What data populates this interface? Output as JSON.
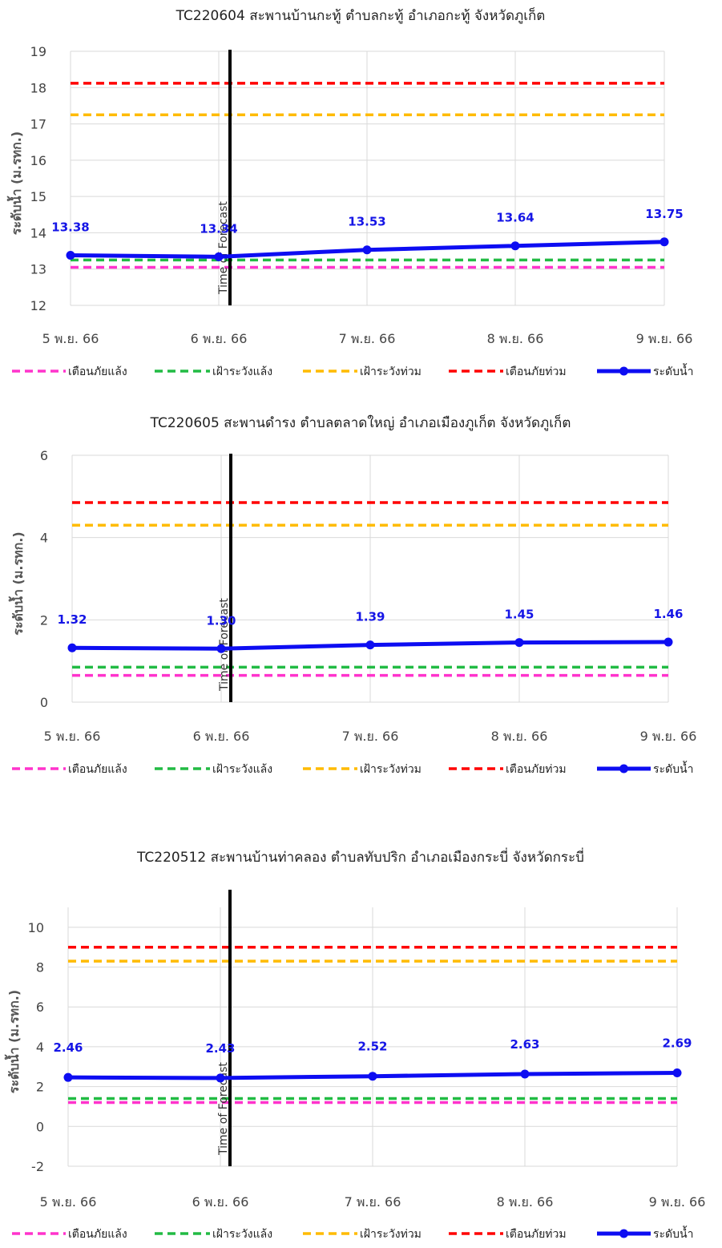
{
  "palette": {
    "drought_warning": "#ff33cc",
    "drought_watch": "#22bb44",
    "flood_watch": "#ffbb00",
    "flood_warning": "#ff0000",
    "water_level": "#0d0df2",
    "grid": "#d9d9d9",
    "time_of_forecast_line": "#000000"
  },
  "chart_data": [
    {
      "type": "line",
      "title": "TC220604 สะพานบ้านกะทู้ ตำบลกะทู้ อำเภอกะทู้  จังหวัดภูเก็ต",
      "ylabel": "ระดับน้ำ (ม.รทก.)",
      "categories": [
        "5 พ.ย. 66",
        "6 พ.ย. 66",
        "7 พ.ย. 66",
        "8 พ.ย. 66",
        "9 พ.ย. 66"
      ],
      "ylim": [
        12,
        19
      ],
      "yticks": [
        12,
        13,
        14,
        15,
        16,
        17,
        18,
        19
      ],
      "forecast_marker": {
        "label": "Time of Forecast",
        "x_index": 1.05
      },
      "thresholds": [
        {
          "name": "เตือนภัยแล้ง",
          "value": 13.05,
          "color": "#ff33cc"
        },
        {
          "name": "เฝ้าระวังแล้ง",
          "value": 13.25,
          "color": "#22bb44"
        },
        {
          "name": "เฝ้าระวังท่วม",
          "value": 17.25,
          "color": "#ffbb00"
        },
        {
          "name": "เตือนภัยท่วม",
          "value": 18.12,
          "color": "#ff0000"
        }
      ],
      "series": [
        {
          "name": "ระดับน้ำ",
          "values": [
            13.38,
            13.34,
            13.53,
            13.64,
            13.75
          ],
          "labels": [
            "13.38",
            "13.34",
            "13.53",
            "13.64",
            "13.75"
          ]
        }
      ],
      "legend": [
        "เตือนภัยแล้ง",
        "เฝ้าระวังแล้ง",
        "เฝ้าระวังท่วม",
        "เตือนภัยท่วม",
        "ระดับน้ำ"
      ],
      "legend_position": "bottom",
      "grid": true
    },
    {
      "type": "line",
      "title": "TC220605 สะพานดำรง ตำบลตลาดใหญ่ อำเภอเมืองภูเก็ต จังหวัดภูเก็ต",
      "ylabel": "ระดับน้ำ (ม.รทก.)",
      "categories": [
        "5 พ.ย. 66",
        "6 พ.ย. 66",
        "7 พ.ย. 66",
        "8 พ.ย. 66",
        "9 พ.ย. 66"
      ],
      "ylim": [
        0,
        6
      ],
      "yticks": [
        0,
        2,
        4,
        6
      ],
      "forecast_marker": {
        "label": "Time of Forecast",
        "x_index": 1.05
      },
      "thresholds": [
        {
          "name": "เตือนภัยแล้ง",
          "value": 0.65,
          "color": "#ff33cc"
        },
        {
          "name": "เฝ้าระวังแล้ง",
          "value": 0.85,
          "color": "#22bb44"
        },
        {
          "name": "เฝ้าระวังท่วม",
          "value": 4.3,
          "color": "#ffbb00"
        },
        {
          "name": "เตือนภัยท่วม",
          "value": 4.85,
          "color": "#ff0000"
        }
      ],
      "series": [
        {
          "name": "ระดับน้ำ",
          "values": [
            1.32,
            1.3,
            1.39,
            1.45,
            1.46
          ],
          "labels": [
            "1.32",
            "1.30",
            "1.39",
            "1.45",
            "1.46"
          ]
        }
      ],
      "legend": [
        "เตือนภัยแล้ง",
        "เฝ้าระวังแล้ง",
        "เฝ้าระวังท่วม",
        "เตือนภัยท่วม",
        "ระดับน้ำ"
      ],
      "legend_position": "bottom",
      "grid": true
    },
    {
      "type": "line",
      "title": "TC220512 สะพานบ้านท่าคลอง ตำบลทับปริก อำเภอเมืองกระบี่  จังหวัดกระบี่",
      "ylabel": "ระดับน้ำ (ม.รทก.)",
      "categories": [
        "5 พ.ย. 66",
        "6 พ.ย. 66",
        "7 พ.ย. 66",
        "8 พ.ย. 66",
        "9 พ.ย. 66"
      ],
      "ylim": [
        -2,
        11
      ],
      "yticks": [
        -2,
        0,
        2,
        4,
        6,
        8,
        10
      ],
      "forecast_marker": {
        "label": "Time of Forecast",
        "x_index": 1.05
      },
      "thresholds": [
        {
          "name": "เตือนภัยแล้ง",
          "value": 1.2,
          "color": "#ff33cc"
        },
        {
          "name": "เฝ้าระวังแล้ง",
          "value": 1.4,
          "color": "#22bb44"
        },
        {
          "name": "เฝ้าระวังท่วม",
          "value": 8.3,
          "color": "#ffbb00"
        },
        {
          "name": "เตือนภัยท่วม",
          "value": 9.0,
          "color": "#ff0000"
        }
      ],
      "series": [
        {
          "name": "ระดับน้ำ",
          "values": [
            2.46,
            2.43,
            2.52,
            2.63,
            2.69
          ],
          "labels": [
            "2.46",
            "2.43",
            "2.52",
            "2.63",
            "2.69"
          ]
        }
      ],
      "legend": [
        "เตือนภัยแล้ง",
        "เฝ้าระวังแล้ง",
        "เฝ้าระวังท่วม",
        "เตือนภัยท่วม",
        "ระดับน้ำ"
      ],
      "legend_position": "bottom",
      "grid": true
    }
  ]
}
